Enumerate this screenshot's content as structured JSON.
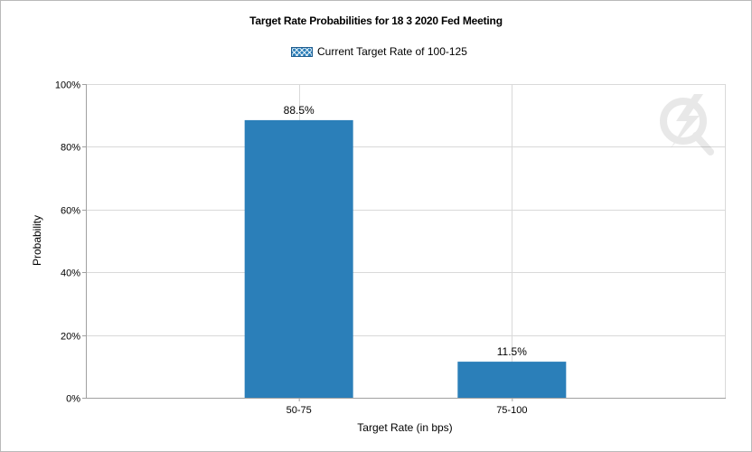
{
  "chart_data": {
    "type": "bar",
    "title": "Target Rate Probabilities for 18 3 2020 Fed Meeting",
    "xlabel": "Target Rate (in bps)",
    "ylabel": "Probability",
    "categories": [
      "50-75",
      "75-100"
    ],
    "series": [
      {
        "name": "Current Target Rate of 100-125",
        "values": [
          88.5,
          11.5
        ],
        "color": "#2b7fb9"
      }
    ],
    "data_labels": [
      "88.5%",
      "11.5%"
    ],
    "ylim": [
      0,
      100
    ],
    "y_ticks": [
      0,
      20,
      40,
      60,
      80,
      100
    ],
    "y_tick_labels": [
      "0%",
      "20%",
      "40%",
      "60%",
      "80%",
      "100%"
    ],
    "grid": true,
    "legend_position": "top-center"
  },
  "colors": {
    "bar": "#2b7fb9",
    "grid": "#d9d9d9",
    "axis": "#a0a0a0"
  },
  "watermark_icon": "q-lightning-logo-icon"
}
